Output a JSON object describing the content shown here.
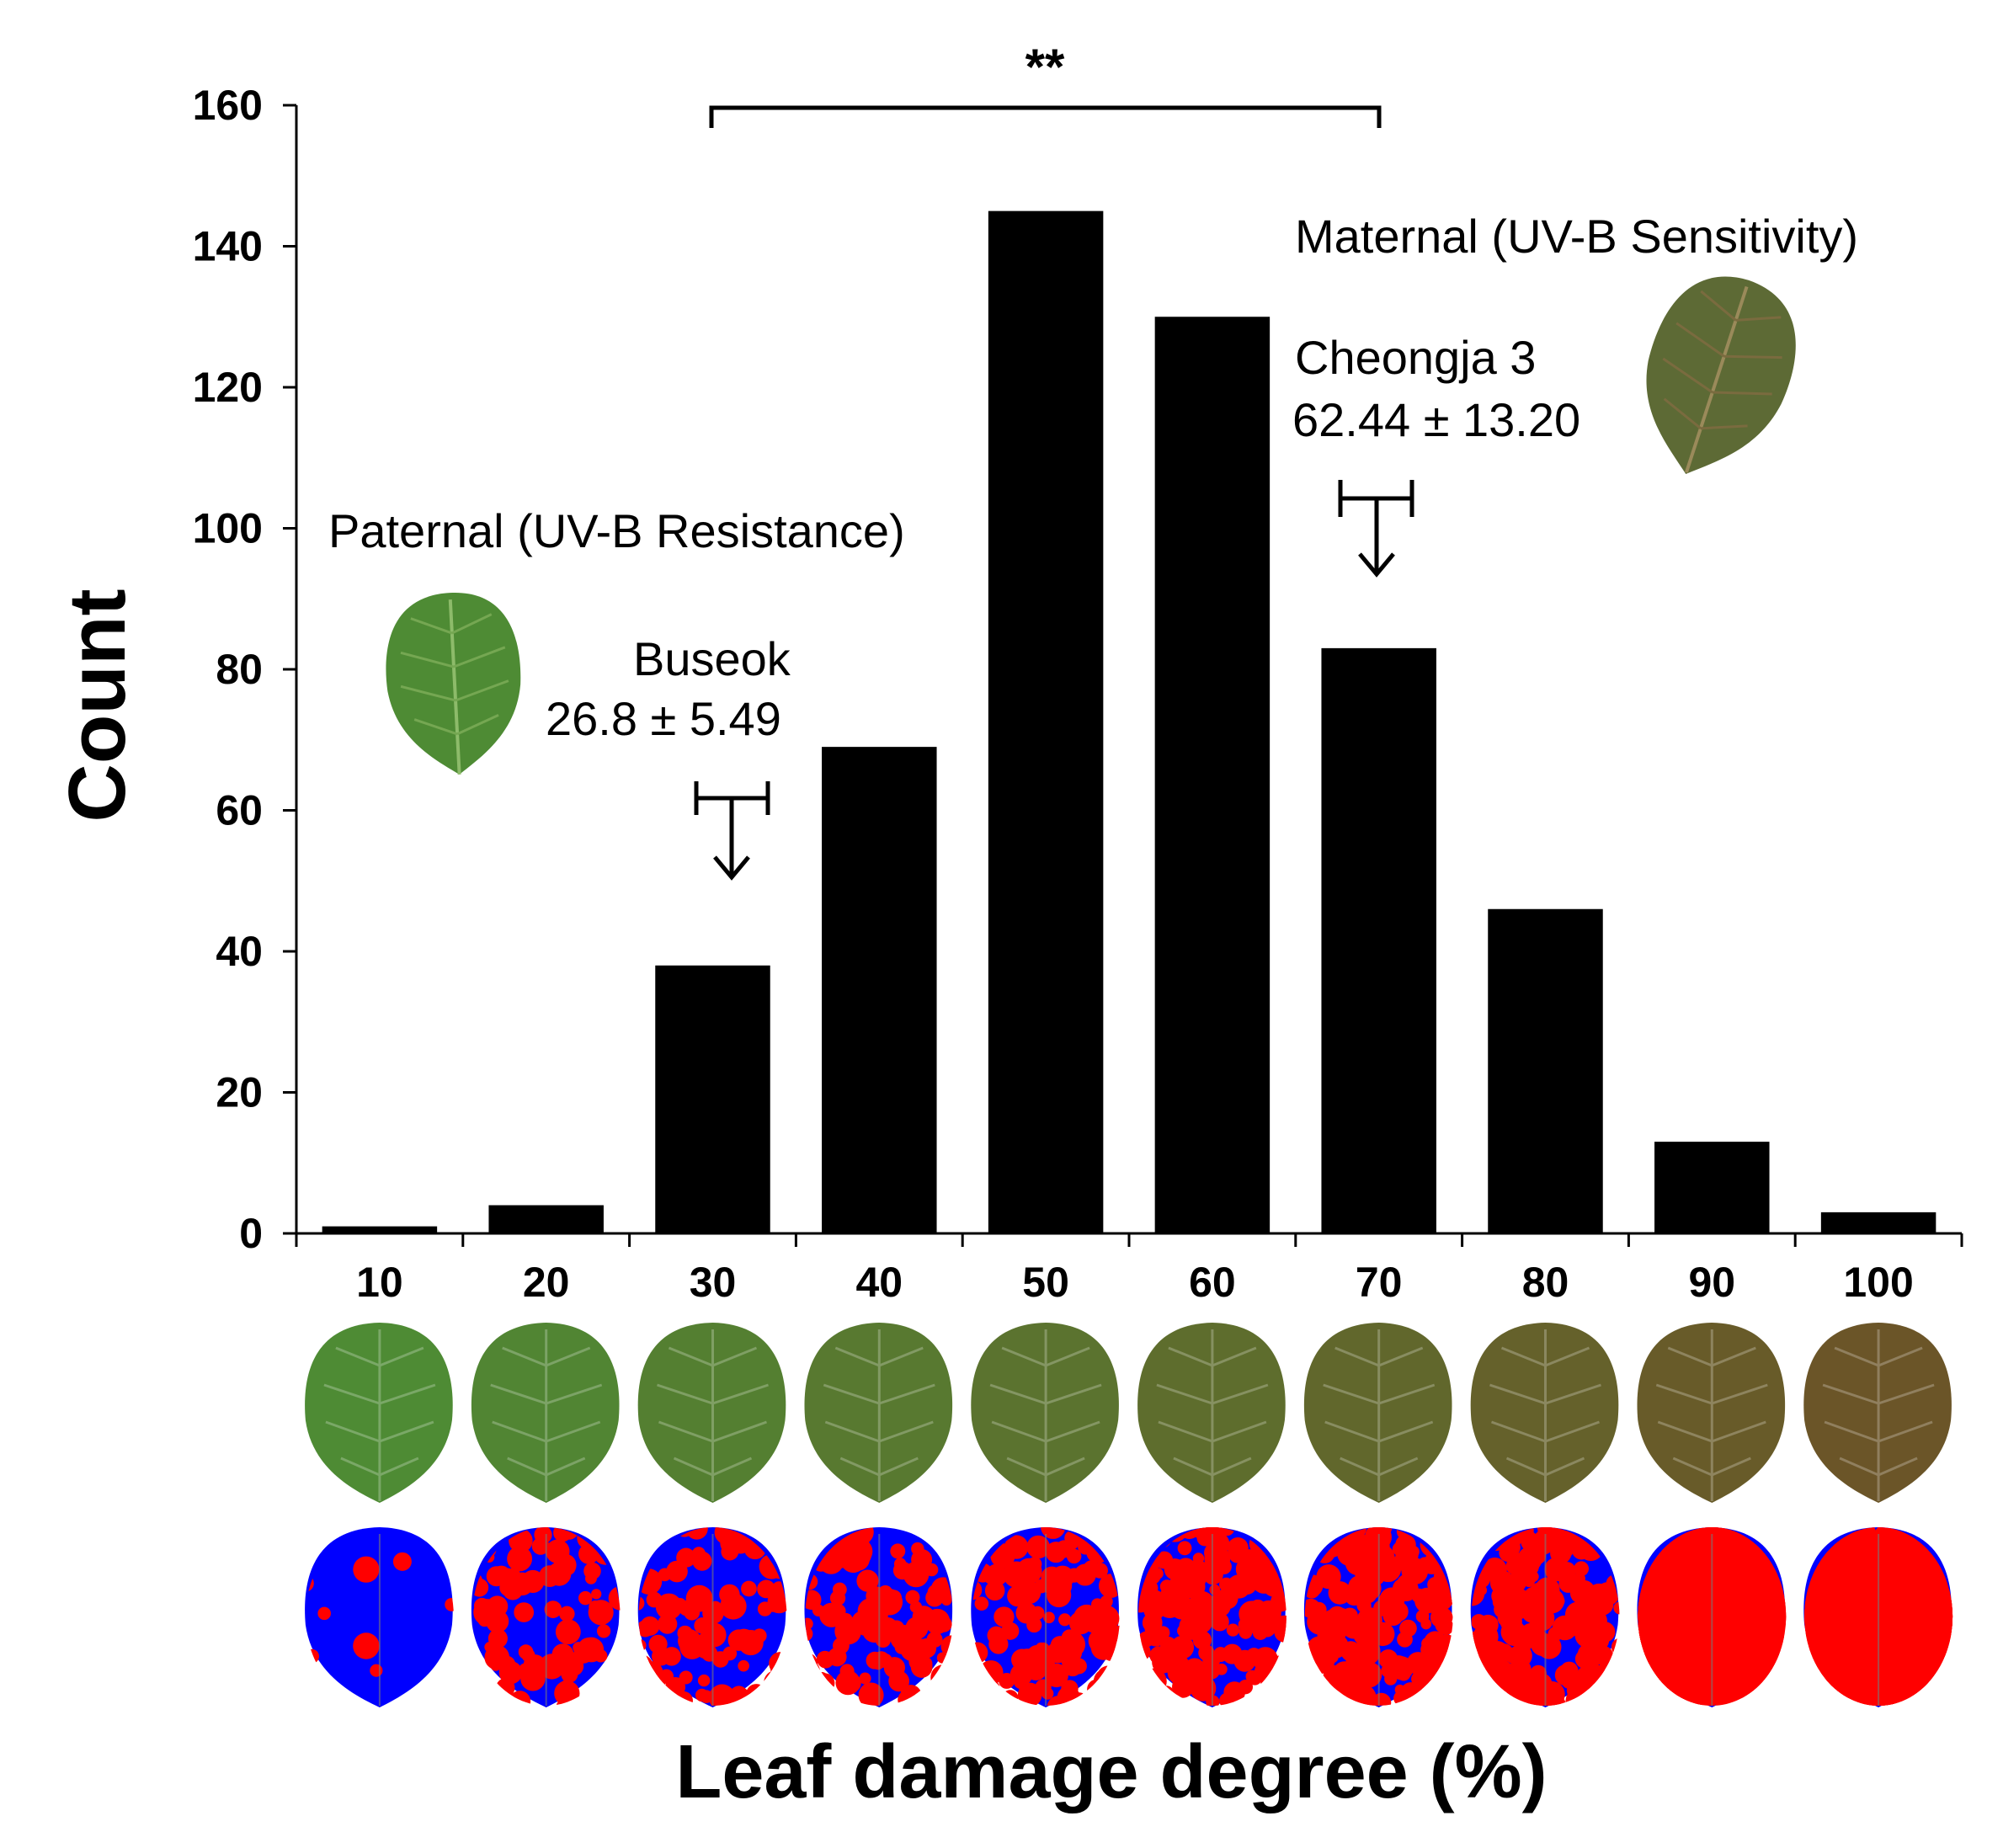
{
  "chart_data": {
    "type": "bar",
    "title": "",
    "xlabel": "Leaf damage degree (%)",
    "ylabel": "Count",
    "categories": [
      "10",
      "20",
      "30",
      "40",
      "50",
      "60",
      "70",
      "80",
      "90",
      "100"
    ],
    "values": [
      1,
      4,
      38,
      69,
      145,
      130,
      83,
      46,
      13,
      3
    ],
    "ylim": [
      0,
      160
    ],
    "yticks": [
      "0",
      "20",
      "40",
      "60",
      "80",
      "100",
      "120",
      "140",
      "160"
    ],
    "grid": false,
    "significance": {
      "label": "**",
      "from_category": "30",
      "to_category": "70"
    },
    "annotations": {
      "paternal": {
        "label": "Paternal (UV-B Resistance)",
        "cultivar": "Buseok",
        "value": "26.8 ± 5.49",
        "mean": 26.8,
        "sd": 5.49
      },
      "maternal": {
        "label": "Maternal (UV-B Sensitivity)",
        "cultivar": "Cheongja 3",
        "value": "62.44 ± 13.20",
        "mean": 62.44,
        "sd": 13.2
      }
    }
  },
  "colors": {
    "bar": "#000000",
    "leaf_green": "#4e8b34",
    "leaf_brown": "#6b5528",
    "damage_healthy": "#0000ff",
    "damage_damaged": "#ff0000"
  },
  "leaf_strip": {
    "damage_fractions": [
      0.03,
      0.35,
      0.35,
      0.45,
      0.5,
      0.65,
      0.7,
      0.8,
      0.92,
      0.95
    ]
  }
}
